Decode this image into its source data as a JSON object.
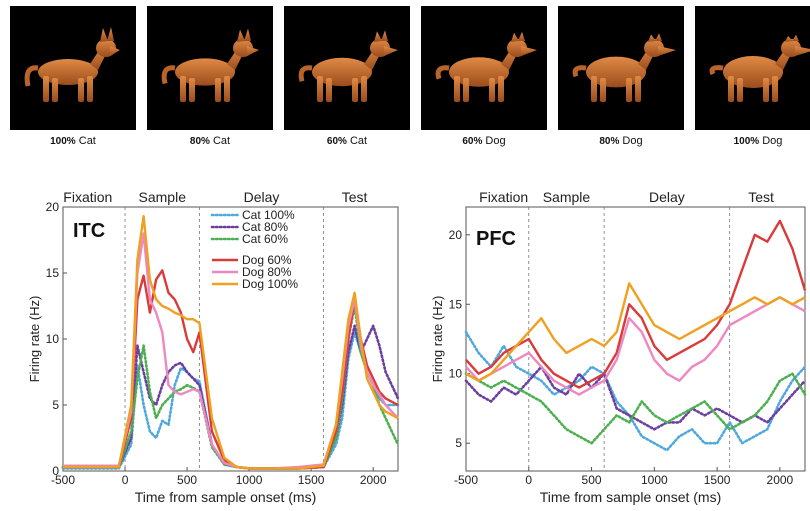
{
  "stimuli": [
    {
      "pct": "100%",
      "name": "Cat",
      "icon": "cat-image",
      "morph": 0.0
    },
    {
      "pct": "80%",
      "name": "Cat",
      "icon": "cat-image",
      "morph": 0.2
    },
    {
      "pct": "60%",
      "name": "Cat",
      "icon": "cat-image",
      "morph": 0.4
    },
    {
      "pct": "60%",
      "name": "Dog",
      "icon": "dog-image",
      "morph": 0.6
    },
    {
      "pct": "80%",
      "name": "Dog",
      "icon": "dog-image",
      "morph": 0.8
    },
    {
      "pct": "100%",
      "name": "Dog",
      "icon": "dog-image",
      "morph": 1.0
    }
  ],
  "chart_data": [
    {
      "type": "line",
      "title": "ITC",
      "epochs": [
        {
          "label": "Fixation",
          "x": -300
        },
        {
          "label": "Sample",
          "x": 300
        },
        {
          "label": "Delay",
          "x": 1100
        },
        {
          "label": "Test",
          "x": 1850
        }
      ],
      "epoch_boundaries": [
        0,
        600,
        1600
      ],
      "xlabel": "Time from sample onset (ms)",
      "ylabel": "Firing rate (Hz)",
      "xlim": [
        -500,
        2200
      ],
      "ylim": [
        0,
        20
      ],
      "xticks": [
        -500,
        0,
        500,
        1000,
        1500,
        2000
      ],
      "yticks": [
        0,
        5,
        10,
        15,
        20
      ],
      "legend_position": "top-center",
      "series": [
        {
          "name": "Cat 100%",
          "color": "#4fa8dc",
          "style": "dotted",
          "x": [
            -500,
            -50,
            50,
            100,
            150,
            200,
            250,
            300,
            350,
            400,
            450,
            500,
            550,
            600,
            700,
            800,
            900,
            1000,
            1200,
            1400,
            1600,
            1700,
            1750,
            1800,
            1850,
            1900,
            1950,
            2000,
            2050,
            2100,
            2200
          ],
          "y": [
            0.2,
            0.2,
            2.0,
            8.0,
            5.0,
            3.0,
            2.5,
            3.8,
            3.5,
            6.5,
            7.8,
            7.5,
            7.0,
            6.8,
            2.0,
            0.5,
            0.3,
            0.2,
            0.2,
            0.2,
            0.3,
            2.0,
            4.0,
            8.5,
            10.5,
            9.0,
            7.5,
            6.5,
            5.5,
            5.0,
            5.0
          ]
        },
        {
          "name": "Cat 80%",
          "color": "#6a3fa0",
          "style": "dotted",
          "x": [
            -500,
            -50,
            50,
            100,
            150,
            200,
            250,
            300,
            350,
            400,
            450,
            500,
            550,
            600,
            700,
            800,
            900,
            1000,
            1200,
            1400,
            1600,
            1700,
            1750,
            1800,
            1850,
            1900,
            1950,
            2000,
            2050,
            2100,
            2200
          ],
          "y": [
            0.3,
            0.3,
            2.5,
            9.5,
            7.5,
            5.5,
            5.0,
            6.5,
            7.5,
            8.0,
            8.2,
            7.5,
            7.0,
            6.5,
            2.0,
            0.5,
            0.3,
            0.2,
            0.2,
            0.2,
            0.3,
            2.5,
            5.0,
            9.0,
            11.0,
            9.0,
            10.0,
            11.0,
            9.5,
            7.5,
            5.5
          ]
        },
        {
          "name": "Cat 60%",
          "color": "#4caf50",
          "style": "dotted",
          "x": [
            -500,
            -50,
            50,
            100,
            150,
            200,
            250,
            300,
            350,
            400,
            450,
            500,
            550,
            600,
            700,
            800,
            900,
            1000,
            1200,
            1400,
            1600,
            1700,
            1750,
            1800,
            1850,
            1900,
            1950,
            2000,
            2050,
            2100,
            2200
          ],
          "y": [
            0.3,
            0.3,
            3.0,
            7.0,
            9.5,
            6.0,
            4.0,
            5.0,
            5.5,
            6.0,
            6.2,
            6.5,
            6.3,
            6.0,
            1.8,
            0.5,
            0.3,
            0.2,
            0.2,
            0.2,
            0.3,
            2.5,
            5.5,
            10.0,
            12.5,
            9.0,
            7.5,
            6.5,
            5.0,
            4.0,
            2.0
          ]
        },
        {
          "name": "Dog 60%",
          "color": "#d93a3a",
          "style": "solid",
          "x": [
            -500,
            -50,
            50,
            100,
            150,
            200,
            250,
            300,
            350,
            400,
            450,
            500,
            550,
            600,
            700,
            800,
            900,
            1000,
            1200,
            1400,
            1600,
            1700,
            1750,
            1800,
            1850,
            1900,
            1950,
            2000,
            2050,
            2100,
            2200
          ],
          "y": [
            0.3,
            0.3,
            4.0,
            13.0,
            14.8,
            12.0,
            14.5,
            15.2,
            13.5,
            13.0,
            12.0,
            10.0,
            9.0,
            10.5,
            3.0,
            0.8,
            0.3,
            0.2,
            0.2,
            0.2,
            0.3,
            3.0,
            6.0,
            10.0,
            13.0,
            10.0,
            8.0,
            7.0,
            6.0,
            5.5,
            5.0
          ]
        },
        {
          "name": "Dog 80%",
          "color": "#ee88c0",
          "style": "solid",
          "x": [
            -500,
            -50,
            50,
            100,
            150,
            200,
            250,
            300,
            350,
            400,
            450,
            500,
            550,
            600,
            700,
            800,
            900,
            1000,
            1200,
            1400,
            1600,
            1700,
            1750,
            1800,
            1850,
            1900,
            1950,
            2000,
            2050,
            2100,
            2200
          ],
          "y": [
            0.4,
            0.4,
            4.5,
            15.0,
            18.0,
            13.0,
            12.0,
            10.5,
            6.5,
            6.0,
            5.8,
            6.0,
            6.2,
            6.0,
            2.0,
            0.6,
            0.3,
            0.2,
            0.2,
            0.3,
            0.5,
            3.5,
            7.0,
            11.0,
            13.0,
            9.5,
            7.5,
            6.5,
            5.8,
            5.0,
            4.0
          ]
        },
        {
          "name": "Dog 100%",
          "color": "#f0a020",
          "style": "solid",
          "x": [
            -500,
            -50,
            50,
            100,
            150,
            200,
            250,
            300,
            350,
            400,
            450,
            500,
            550,
            600,
            700,
            800,
            900,
            1000,
            1200,
            1400,
            1600,
            1700,
            1750,
            1800,
            1850,
            1900,
            1950,
            2000,
            2050,
            2100,
            2200
          ],
          "y": [
            0.3,
            0.3,
            5.0,
            16.0,
            19.3,
            14.5,
            13.0,
            12.5,
            12.3,
            12.0,
            11.8,
            11.5,
            11.5,
            11.2,
            4.0,
            1.0,
            0.3,
            0.2,
            0.2,
            0.2,
            0.4,
            3.5,
            7.5,
            11.5,
            13.5,
            10.0,
            7.0,
            6.0,
            5.0,
            4.5,
            4.0
          ]
        }
      ]
    },
    {
      "type": "line",
      "title": "PFC",
      "epochs": [
        {
          "label": "Fixation",
          "x": -200
        },
        {
          "label": "Sample",
          "x": 300
        },
        {
          "label": "Delay",
          "x": 1100
        },
        {
          "label": "Test",
          "x": 1850
        }
      ],
      "epoch_boundaries": [
        0,
        600,
        1600
      ],
      "xlabel": "Time from sample onset (ms)",
      "ylabel": "Firing rate (Hz)",
      "xlim": [
        -500,
        2200
      ],
      "ylim": [
        3,
        22
      ],
      "xticks": [
        -500,
        0,
        500,
        1000,
        1500,
        2000
      ],
      "yticks": [
        5,
        10,
        15,
        20
      ],
      "series": [
        {
          "name": "Cat 100%",
          "color": "#4fa8dc",
          "style": "dotted",
          "x": [
            -500,
            -400,
            -300,
            -200,
            -100,
            0,
            100,
            200,
            300,
            400,
            500,
            600,
            700,
            800,
            900,
            1000,
            1100,
            1200,
            1300,
            1400,
            1500,
            1600,
            1700,
            1800,
            1900,
            2000,
            2100,
            2200
          ],
          "y": [
            13.0,
            11.5,
            10.5,
            12.0,
            10.5,
            10.0,
            9.5,
            8.5,
            9.0,
            9.5,
            10.5,
            10.0,
            8.0,
            7.0,
            5.5,
            5.0,
            4.5,
            5.5,
            6.0,
            5.0,
            5.0,
            6.5,
            5.0,
            5.5,
            6.0,
            8.0,
            9.5,
            10.5
          ]
        },
        {
          "name": "Cat 80%",
          "color": "#6a3fa0",
          "style": "dotted",
          "x": [
            -500,
            -400,
            -300,
            -200,
            -100,
            0,
            100,
            200,
            300,
            400,
            500,
            600,
            700,
            800,
            900,
            1000,
            1100,
            1200,
            1300,
            1400,
            1500,
            1600,
            1700,
            1800,
            1900,
            2000,
            2100,
            2200
          ],
          "y": [
            9.5,
            8.5,
            8.0,
            9.0,
            8.5,
            9.5,
            10.5,
            9.0,
            8.5,
            10.0,
            9.0,
            10.0,
            7.5,
            7.0,
            6.5,
            6.0,
            6.5,
            6.5,
            7.5,
            7.0,
            7.5,
            7.0,
            6.5,
            7.0,
            6.5,
            7.5,
            8.5,
            9.5
          ]
        },
        {
          "name": "Cat 60%",
          "color": "#4caf50",
          "style": "dotted",
          "x": [
            -500,
            -400,
            -300,
            -200,
            -100,
            0,
            100,
            200,
            300,
            400,
            500,
            600,
            700,
            800,
            900,
            1000,
            1100,
            1200,
            1300,
            1400,
            1500,
            1600,
            1700,
            1800,
            1900,
            2000,
            2100,
            2200
          ],
          "y": [
            10.0,
            9.5,
            9.0,
            9.5,
            9.0,
            8.5,
            8.0,
            7.0,
            6.0,
            5.5,
            5.0,
            6.0,
            7.0,
            6.5,
            8.0,
            7.0,
            6.5,
            7.0,
            7.5,
            8.0,
            7.0,
            6.0,
            6.5,
            7.0,
            8.0,
            9.5,
            10.0,
            8.5
          ]
        },
        {
          "name": "Dog 60%",
          "color": "#d93a3a",
          "style": "solid",
          "x": [
            -500,
            -400,
            -300,
            -200,
            -100,
            0,
            100,
            200,
            300,
            400,
            500,
            600,
            700,
            800,
            900,
            1000,
            1100,
            1200,
            1300,
            1400,
            1500,
            1600,
            1700,
            1800,
            1900,
            2000,
            2100,
            2200
          ],
          "y": [
            11.0,
            10.0,
            10.5,
            11.5,
            12.0,
            12.5,
            11.0,
            10.0,
            9.5,
            9.0,
            9.5,
            10.0,
            11.5,
            15.0,
            14.0,
            12.0,
            11.0,
            11.5,
            12.0,
            12.5,
            13.5,
            15.0,
            17.5,
            20.0,
            19.5,
            21.0,
            19.0,
            16.0
          ]
        },
        {
          "name": "Dog 80%",
          "color": "#ee88c0",
          "style": "solid",
          "x": [
            -500,
            -400,
            -300,
            -200,
            -100,
            0,
            100,
            200,
            300,
            400,
            500,
            600,
            700,
            800,
            900,
            1000,
            1100,
            1200,
            1300,
            1400,
            1500,
            1600,
            1700,
            1800,
            1900,
            2000,
            2100,
            2200
          ],
          "y": [
            10.5,
            9.5,
            10.0,
            10.5,
            11.0,
            11.5,
            10.5,
            9.5,
            9.0,
            8.5,
            9.0,
            9.5,
            11.0,
            14.0,
            13.0,
            11.0,
            10.0,
            9.5,
            10.5,
            11.0,
            12.0,
            13.5,
            14.0,
            14.5,
            15.0,
            15.5,
            15.0,
            14.5
          ]
        },
        {
          "name": "Dog 100%",
          "color": "#f0a020",
          "style": "solid",
          "x": [
            -500,
            -400,
            -300,
            -200,
            -100,
            0,
            100,
            200,
            300,
            400,
            500,
            600,
            700,
            800,
            900,
            1000,
            1100,
            1200,
            1300,
            1400,
            1500,
            1600,
            1700,
            1800,
            1900,
            2000,
            2100,
            2200
          ],
          "y": [
            10.0,
            9.5,
            10.0,
            11.0,
            12.0,
            13.0,
            14.0,
            12.5,
            11.5,
            12.0,
            12.5,
            12.0,
            13.0,
            16.5,
            15.0,
            13.5,
            13.0,
            12.5,
            13.0,
            13.5,
            14.0,
            14.5,
            15.0,
            15.5,
            15.0,
            15.5,
            15.0,
            15.5
          ]
        }
      ]
    }
  ]
}
